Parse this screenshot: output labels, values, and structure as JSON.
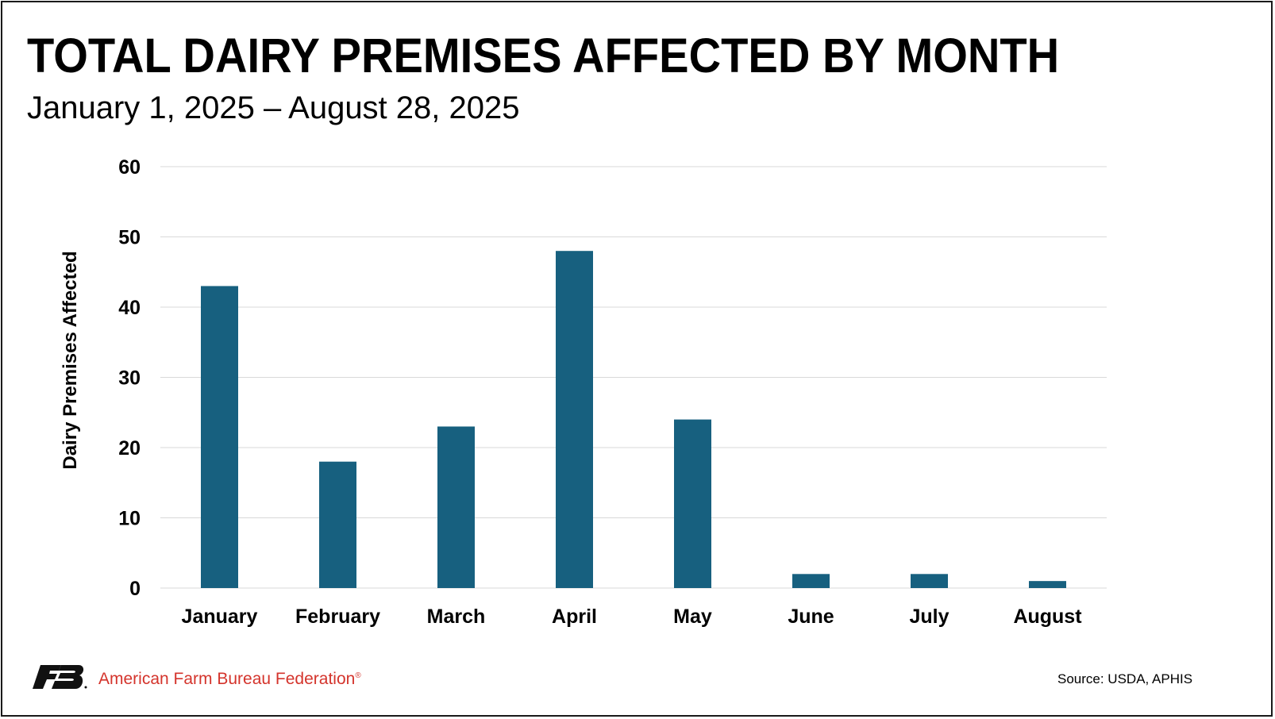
{
  "chart_data": {
    "type": "bar",
    "title": "TOTAL DAIRY PREMISES AFFECTED BY MONTH",
    "subtitle": "January 1, 2025 – August 28, 2025",
    "xlabel": "",
    "ylabel": "Dairy Premises Affected",
    "categories": [
      "January",
      "February",
      "March",
      "April",
      "May",
      "June",
      "July",
      "August"
    ],
    "values": [
      43,
      18,
      23,
      48,
      24,
      2,
      2,
      1
    ],
    "ylim": [
      0,
      60
    ],
    "yticks": [
      0,
      10,
      20,
      30,
      40,
      50,
      60
    ],
    "grid": true,
    "legend": "none",
    "bar_color": "#17607f",
    "grid_color": "#d9d9d9"
  },
  "footer": {
    "organization": "American Farm Bureau Federation",
    "registered_mark": "®",
    "logo_text": "FB",
    "source": "Source: USDA, APHIS",
    "brand_color": "#d4342c"
  }
}
